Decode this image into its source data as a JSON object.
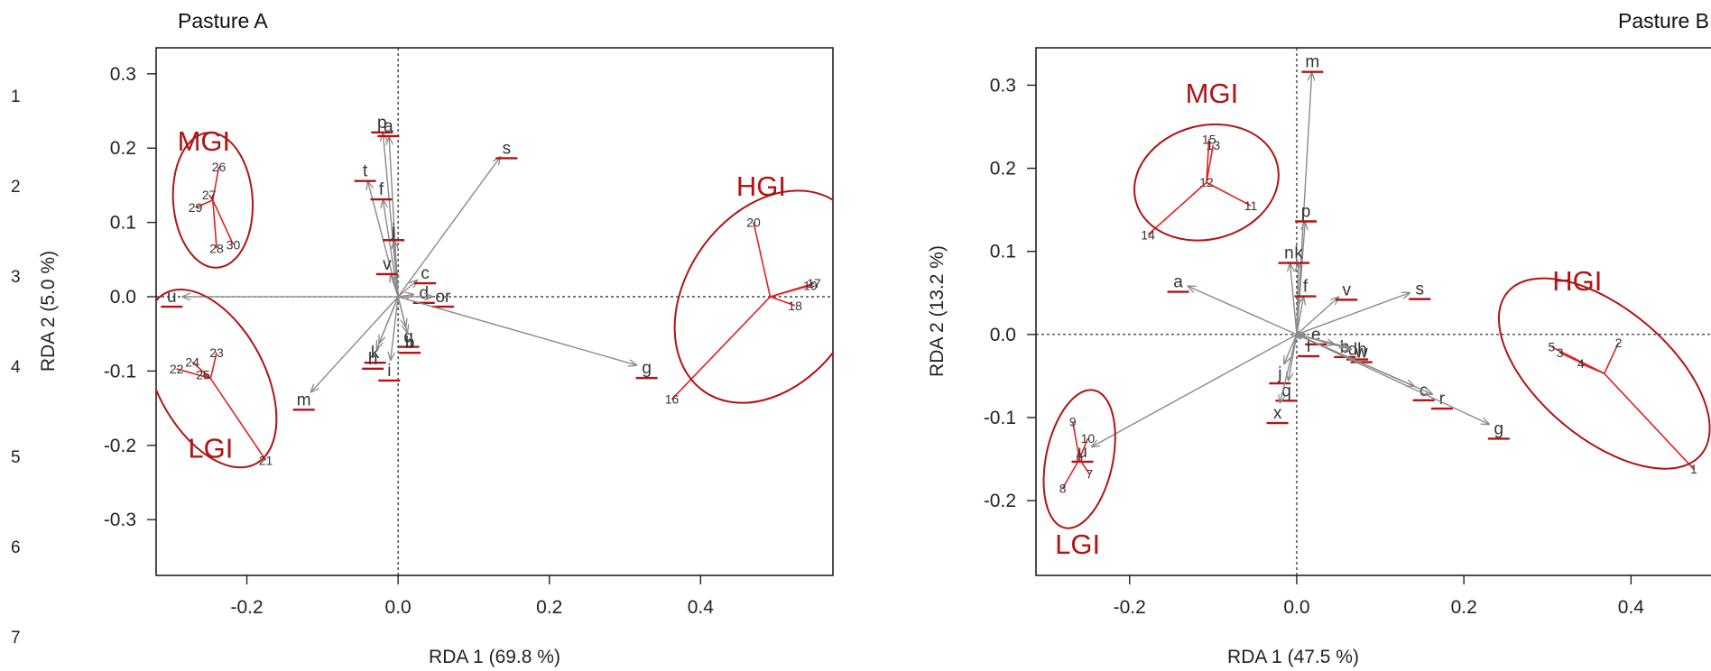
{
  "line_numbers": [
    "1",
    "2",
    "3",
    "4",
    "5",
    "6",
    "7"
  ],
  "chart_data": [
    {
      "type": "scatter",
      "subtype": "rda-triplot",
      "title": "Pasture A",
      "xlabel": "RDA 1 (69.8 %)",
      "ylabel": "RDA 2 (5.0 %)",
      "xlim": [
        -0.32,
        0.575
      ],
      "ylim": [
        -0.375,
        0.335
      ],
      "xticks": [
        -0.2,
        0.0,
        0.2,
        0.4
      ],
      "xtick_labels": [
        "-0.2",
        "0.0",
        "0.2",
        "0.4"
      ],
      "yticks": [
        -0.3,
        -0.2,
        -0.1,
        0.0,
        0.1,
        0.2,
        0.3
      ],
      "ytick_labels": [
        "-0.3",
        "-0.2",
        "-0.1",
        "0.0",
        "0.1",
        "0.2",
        "0.3"
      ],
      "grid": false,
      "vectors": [
        {
          "label": "p",
          "x": -0.02,
          "y": 0.22
        },
        {
          "label": "a",
          "x": -0.012,
          "y": 0.215
        },
        {
          "label": "s",
          "x": 0.135,
          "y": 0.188
        },
        {
          "label": "t",
          "x": -0.04,
          "y": 0.155
        },
        {
          "label": "f",
          "x": -0.02,
          "y": 0.13
        },
        {
          "label": "j",
          "x": -0.005,
          "y": 0.075
        },
        {
          "label": "c",
          "x": 0.025,
          "y": 0.022
        },
        {
          "label": "v",
          "x": -0.01,
          "y": 0.03
        },
        {
          "label": "d",
          "x": 0.02,
          "y": 0.003
        },
        {
          "label": "or",
          "x": 0.045,
          "y": 0.0
        },
        {
          "label": "u",
          "x": -0.285,
          "y": 0.0
        },
        {
          "label": "g",
          "x": 0.315,
          "y": -0.092
        },
        {
          "label": "m",
          "x": -0.115,
          "y": -0.128
        },
        {
          "label": "k",
          "x": -0.025,
          "y": -0.062
        },
        {
          "label": "h",
          "x": -0.028,
          "y": -0.07
        },
        {
          "label": "i",
          "x": -0.01,
          "y": -0.085
        },
        {
          "label": "q",
          "x": 0.01,
          "y": -0.04
        },
        {
          "label": "b",
          "x": 0.012,
          "y": -0.048
        }
      ],
      "groups": [
        {
          "label": "MGI",
          "center": [
            -0.245,
            0.13
          ],
          "sites": [
            {
              "id": "26",
              "x": -0.237,
              "y": 0.175
            },
            {
              "id": "27",
              "x": -0.25,
              "y": 0.137
            },
            {
              "id": "29",
              "x": -0.268,
              "y": 0.12
            },
            {
              "id": "28",
              "x": -0.24,
              "y": 0.065
            },
            {
              "id": "30",
              "x": -0.218,
              "y": 0.07
            }
          ]
        },
        {
          "label": "LGI",
          "center": [
            -0.248,
            -0.11
          ],
          "sites": [
            {
              "id": "23",
              "x": -0.24,
              "y": -0.075
            },
            {
              "id": "24",
              "x": -0.272,
              "y": -0.088
            },
            {
              "id": "22",
              "x": -0.293,
              "y": -0.097
            },
            {
              "id": "25",
              "x": -0.258,
              "y": -0.105
            },
            {
              "id": "21",
              "x": -0.175,
              "y": -0.22
            }
          ]
        },
        {
          "label": "HGI",
          "center": [
            0.492,
            0.0
          ],
          "sites": [
            {
              "id": "20",
              "x": 0.47,
              "y": 0.1
            },
            {
              "id": "17",
              "x": 0.55,
              "y": 0.018
            },
            {
              "id": "19",
              "x": 0.545,
              "y": 0.015
            },
            {
              "id": "18",
              "x": 0.525,
              "y": -0.012
            },
            {
              "id": "16",
              "x": 0.362,
              "y": -0.138
            }
          ]
        }
      ]
    },
    {
      "type": "scatter",
      "subtype": "rda-triplot",
      "title": "Pasture B",
      "xlabel": "RDA 1 (47.5 %)",
      "ylabel": "RDA 2 (13.2 %)",
      "xlim": [
        -0.312,
        0.5
      ],
      "ylim": [
        -0.29,
        0.345
      ],
      "xticks": [
        -0.2,
        0.0,
        0.2,
        0.4
      ],
      "xtick_labels": [
        "-0.2",
        "0.0",
        "0.2",
        "0.4"
      ],
      "yticks": [
        -0.2,
        -0.1,
        0.0,
        0.1,
        0.2,
        0.3
      ],
      "ytick_labels": [
        "-0.2",
        "-0.1",
        "0.0",
        "0.1",
        "0.2",
        "0.3"
      ],
      "grid": false,
      "vectors": [
        {
          "label": "m",
          "x": 0.018,
          "y": 0.315
        },
        {
          "label": "p",
          "x": 0.01,
          "y": 0.135
        },
        {
          "label": "n",
          "x": -0.008,
          "y": 0.085
        },
        {
          "label": "k",
          "x": 0.002,
          "y": 0.085
        },
        {
          "label": "a",
          "x": -0.13,
          "y": 0.058
        },
        {
          "label": "f",
          "x": 0.008,
          "y": 0.045
        },
        {
          "label": "v",
          "x": 0.05,
          "y": 0.045
        },
        {
          "label": "s",
          "x": 0.135,
          "y": 0.05
        },
        {
          "label": "e",
          "x": 0.01,
          "y": 0.0
        },
        {
          "label": "l",
          "x": 0.005,
          "y": -0.005
        },
        {
          "label": "b",
          "x": 0.045,
          "y": -0.012
        },
        {
          "label": "dh",
          "x": 0.06,
          "y": -0.015
        },
        {
          "label": "w",
          "x": 0.065,
          "y": -0.018
        },
        {
          "label": "c",
          "x": 0.14,
          "y": -0.062
        },
        {
          "label": "r",
          "x": 0.162,
          "y": -0.072
        },
        {
          "label": "g",
          "x": 0.23,
          "y": -0.108
        },
        {
          "label": "j",
          "x": -0.015,
          "y": -0.035
        },
        {
          "label": "q",
          "x": -0.01,
          "y": -0.055
        },
        {
          "label": "x",
          "x": -0.02,
          "y": -0.082
        },
        {
          "label": "u",
          "x": -0.245,
          "y": -0.135
        }
      ],
      "groups": [
        {
          "label": "MGI",
          "center": [
            -0.108,
            0.183
          ],
          "sites": [
            {
              "id": "15",
              "x": -0.105,
              "y": 0.235
            },
            {
              "id": "13",
              "x": -0.1,
              "y": 0.228
            },
            {
              "id": "12",
              "x": -0.108,
              "y": 0.183
            },
            {
              "id": "11",
              "x": -0.055,
              "y": 0.155
            },
            {
              "id": "14",
              "x": -0.178,
              "y": 0.12
            }
          ]
        },
        {
          "label": "LGI",
          "center": [
            -0.26,
            -0.15
          ],
          "sites": [
            {
              "id": "9",
              "x": -0.268,
              "y": -0.105
            },
            {
              "id": "10",
              "x": -0.25,
              "y": -0.125
            },
            {
              "id": "6",
              "x": -0.26,
              "y": -0.148
            },
            {
              "id": "7",
              "x": -0.248,
              "y": -0.168
            },
            {
              "id": "8",
              "x": -0.28,
              "y": -0.185
            }
          ]
        },
        {
          "label": "HGI",
          "center": [
            0.368,
            -0.047
          ],
          "sites": [
            {
              "id": "5",
              "x": 0.305,
              "y": -0.015
            },
            {
              "id": "3",
              "x": 0.315,
              "y": -0.022
            },
            {
              "id": "4",
              "x": 0.34,
              "y": -0.035
            },
            {
              "id": "2",
              "x": 0.385,
              "y": -0.01
            },
            {
              "id": "1",
              "x": 0.475,
              "y": -0.162
            }
          ]
        }
      ]
    }
  ]
}
